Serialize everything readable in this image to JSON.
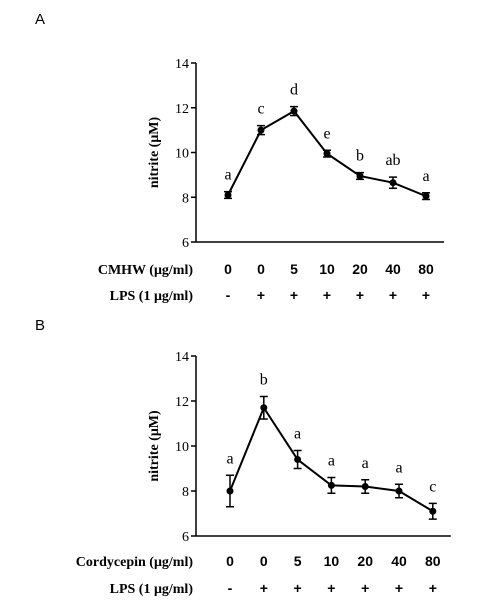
{
  "chart_data": [
    {
      "type": "line",
      "panel": "A",
      "ylabel": "nitrite (μM)",
      "ylim": [
        6,
        14
      ],
      "yticks": [
        6,
        8,
        10,
        12,
        14
      ],
      "treatment_label": "CMHW (μg/ml)",
      "treatment_values": [
        "0",
        "0",
        "5",
        "10",
        "20",
        "40",
        "80"
      ],
      "lps_label": "LPS (1 μg/ml)",
      "lps_values": [
        "-",
        "+",
        "+",
        "+",
        "+",
        "+",
        "+"
      ],
      "values": [
        8.1,
        11.0,
        11.85,
        9.95,
        8.95,
        8.65,
        8.05
      ],
      "errors": [
        0.15,
        0.2,
        0.2,
        0.15,
        0.15,
        0.25,
        0.15
      ],
      "significance": [
        "a",
        "c",
        "d",
        "e",
        "b",
        "ab",
        "a"
      ]
    },
    {
      "type": "line",
      "panel": "B",
      "ylabel": "nitrite (μM)",
      "ylim": [
        6,
        14
      ],
      "yticks": [
        6,
        8,
        10,
        12,
        14
      ],
      "treatment_label": "Cordycepin (μg/ml)",
      "treatment_values": [
        "0",
        "0",
        "5",
        "10",
        "20",
        "40",
        "80"
      ],
      "lps_label": "LPS (1 μg/ml)",
      "lps_values": [
        "-",
        "+",
        "+",
        "+",
        "+",
        "+",
        "+"
      ],
      "values": [
        8.0,
        11.7,
        9.4,
        8.25,
        8.2,
        8.0,
        7.1
      ],
      "errors": [
        0.7,
        0.5,
        0.4,
        0.35,
        0.3,
        0.3,
        0.35
      ],
      "significance": [
        "a",
        "b",
        "a",
        "a",
        "a",
        "a",
        "c"
      ]
    }
  ]
}
